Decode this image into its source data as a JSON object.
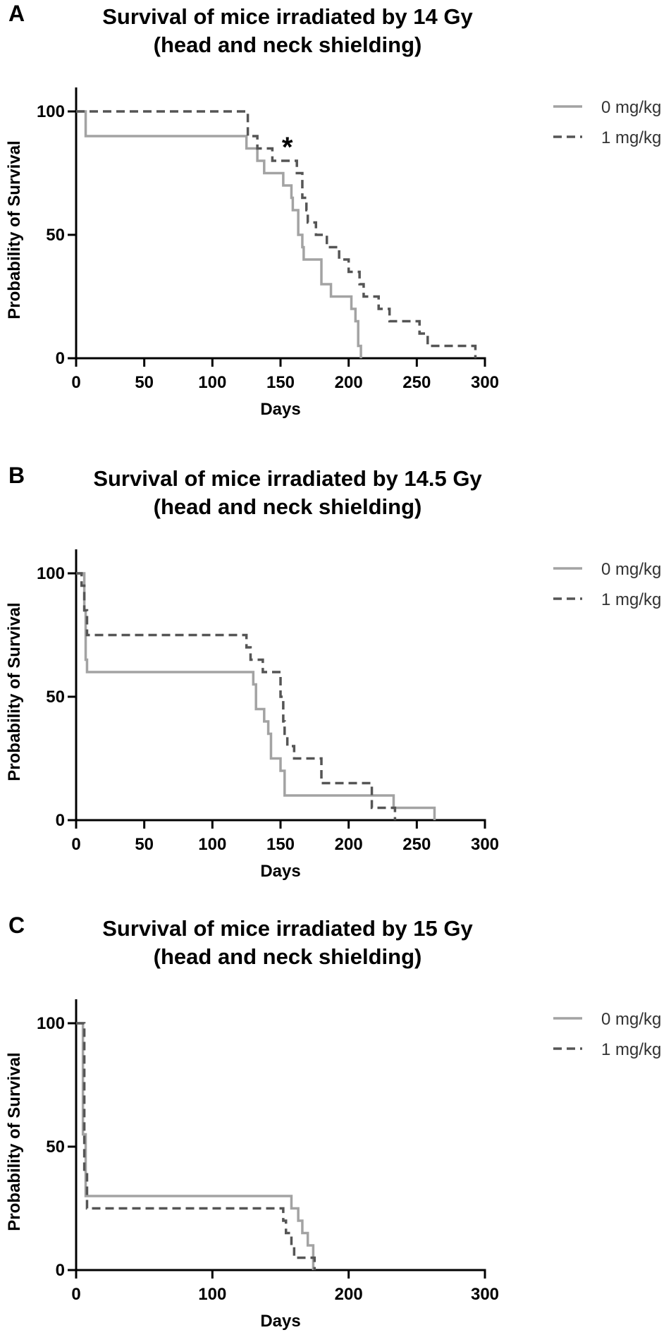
{
  "chart_data": [
    {
      "type": "line",
      "panel": "A",
      "title": [
        "Survival of mice irradiated by 14 Gy",
        "(head and neck shielding)"
      ],
      "xlabel": "Days",
      "ylabel": "Probability of Survival",
      "xlim": [
        0,
        300
      ],
      "ylim": [
        0,
        100
      ],
      "xticks": [
        0,
        50,
        100,
        150,
        200,
        250,
        300
      ],
      "yticks": [
        0,
        50,
        100
      ],
      "legend": "top-right",
      "annotation": "*",
      "annotation_at": [
        155,
        88
      ],
      "series": [
        {
          "name": "0 mg/kg",
          "style": "solid",
          "color": "#a3a3a3",
          "steps": [
            [
              0,
              100
            ],
            [
              7,
              90
            ],
            [
              125,
              85
            ],
            [
              133,
              80
            ],
            [
              138,
              75
            ],
            [
              152,
              70
            ],
            [
              158,
              65
            ],
            [
              159,
              60
            ],
            [
              163,
              50
            ],
            [
              166,
              45
            ],
            [
              167,
              40
            ],
            [
              180,
              30
            ],
            [
              187,
              25
            ],
            [
              202,
              20
            ],
            [
              205,
              15
            ],
            [
              207,
              5
            ],
            [
              209,
              0
            ]
          ]
        },
        {
          "name": "1 mg/kg",
          "style": "dashed",
          "color": "#555555",
          "steps": [
            [
              0,
              100
            ],
            [
              126,
              90
            ],
            [
              133,
              85
            ],
            [
              144,
              80
            ],
            [
              162,
              75
            ],
            [
              166,
              65
            ],
            [
              169,
              60
            ],
            [
              170,
              55
            ],
            [
              176,
              50
            ],
            [
              184,
              45
            ],
            [
              193,
              40
            ],
            [
              200,
              35
            ],
            [
              208,
              30
            ],
            [
              211,
              25
            ],
            [
              222,
              20
            ],
            [
              230,
              15
            ],
            [
              252,
              10
            ],
            [
              258,
              5
            ],
            [
              293,
              0
            ]
          ]
        }
      ]
    },
    {
      "type": "line",
      "panel": "B",
      "title": [
        "Survival of mice irradiated by 14.5 Gy",
        "(head and neck shielding)"
      ],
      "xlabel": "Days",
      "ylabel": "Probability of Survival",
      "xlim": [
        0,
        300
      ],
      "ylim": [
        0,
        100
      ],
      "xticks": [
        0,
        50,
        100,
        150,
        200,
        250,
        300
      ],
      "yticks": [
        0,
        50,
        100
      ],
      "legend": "top-right",
      "series": [
        {
          "name": "0 mg/kg",
          "style": "solid",
          "color": "#a3a3a3",
          "steps": [
            [
              0,
              100
            ],
            [
              6,
              85
            ],
            [
              7,
              65
            ],
            [
              8,
              60
            ],
            [
              130,
              55
            ],
            [
              132,
              45
            ],
            [
              138,
              40
            ],
            [
              141,
              35
            ],
            [
              143,
              25
            ],
            [
              150,
              20
            ],
            [
              153,
              10
            ],
            [
              233,
              5
            ],
            [
              263,
              0
            ]
          ]
        },
        {
          "name": "1 mg/kg",
          "style": "dashed",
          "color": "#555555",
          "steps": [
            [
              0,
              100
            ],
            [
              4,
              95
            ],
            [
              6,
              85
            ],
            [
              8,
              75
            ],
            [
              125,
              70
            ],
            [
              128,
              65
            ],
            [
              137,
              60
            ],
            [
              150,
              50
            ],
            [
              152,
              40
            ],
            [
              153,
              35
            ],
            [
              155,
              30
            ],
            [
              160,
              25
            ],
            [
              180,
              15
            ],
            [
              217,
              5
            ],
            [
              234,
              0
            ]
          ]
        }
      ]
    },
    {
      "type": "line",
      "panel": "C",
      "title": [
        "Survival of mice irradiated by 15 Gy",
        "(head and neck shielding)"
      ],
      "xlabel": "Days",
      "ylabel": "Probability of Survival",
      "xlim": [
        0,
        300
      ],
      "ylim": [
        0,
        100
      ],
      "xticks": [
        0,
        100,
        200,
        300
      ],
      "yticks": [
        0,
        50,
        100
      ],
      "legend": "top-right",
      "series": [
        {
          "name": "0 mg/kg",
          "style": "solid",
          "color": "#a3a3a3",
          "steps": [
            [
              0,
              100
            ],
            [
              5,
              55
            ],
            [
              7,
              30
            ],
            [
              158,
              25
            ],
            [
              163,
              20
            ],
            [
              166,
              15
            ],
            [
              170,
              10
            ],
            [
              174,
              0
            ]
          ]
        },
        {
          "name": "1 mg/kg",
          "style": "dashed",
          "color": "#555555",
          "steps": [
            [
              0,
              100
            ],
            [
              6,
              40
            ],
            [
              8,
              25
            ],
            [
              152,
              20
            ],
            [
              154,
              15
            ],
            [
              158,
              10
            ],
            [
              160,
              5
            ],
            [
              175,
              0
            ]
          ]
        }
      ]
    }
  ]
}
